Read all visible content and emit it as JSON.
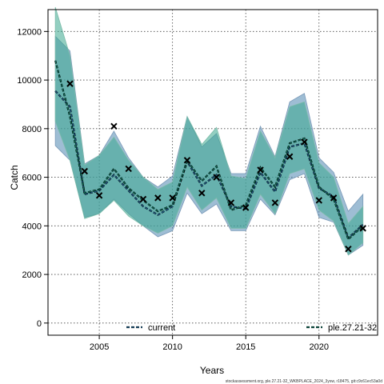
{
  "chart_data": {
    "type": "line",
    "xlabel": "Years",
    "ylabel": "Catch",
    "xlim": [
      2001.5,
      2024
    ],
    "ylim": [
      -500,
      12900
    ],
    "x_ticks": [
      2005,
      2010,
      2015,
      2020
    ],
    "y_ticks": [
      0,
      2000,
      4000,
      6000,
      8000,
      10000,
      12000
    ],
    "grid": true,
    "legend_position": "bottom",
    "colors": {
      "current": "#4f86b0",
      "ple.27.21-32": "#3aa88e",
      "observed": "#000000"
    },
    "series": [
      {
        "name": "current",
        "x": [
          2002,
          2003,
          2004,
          2005,
          2006,
          2007,
          2008,
          2009,
          2010,
          2011,
          2012,
          2013,
          2014,
          2015,
          2016,
          2017,
          2018,
          2019,
          2020,
          2021,
          2022,
          2023
        ],
        "values": [
          9550,
          8900,
          5300,
          5450,
          6100,
          5450,
          4800,
          4450,
          4800,
          6650,
          5650,
          6100,
          4800,
          4700,
          6200,
          5400,
          7250,
          7400,
          5550,
          5200,
          3500,
          4050
        ],
        "lower": [
          7300,
          6700,
          4350,
          4500,
          5100,
          4500,
          4000,
          3550,
          3800,
          5350,
          4500,
          4900,
          3800,
          3800,
          5100,
          4450,
          5900,
          6150,
          4350,
          4150,
          2800,
          3200
        ],
        "upper": [
          11800,
          11200,
          6550,
          6900,
          7900,
          6800,
          6000,
          5600,
          6050,
          8500,
          7250,
          7800,
          6150,
          6150,
          8100,
          6850,
          9100,
          9450,
          6800,
          6200,
          4600,
          5300
        ]
      },
      {
        "name": "ple.27.21-32",
        "x": [
          2002,
          2003,
          2004,
          2005,
          2006,
          2007,
          2008,
          2009,
          2010,
          2011,
          2012,
          2013,
          2014,
          2015,
          2016,
          2017,
          2018,
          2019,
          2020,
          2021,
          2022,
          2023
        ],
        "values": [
          10800,
          8500,
          5350,
          5500,
          6350,
          5550,
          5050,
          4600,
          4850,
          6700,
          5850,
          6450,
          4650,
          4850,
          6400,
          5600,
          7400,
          7600,
          5600,
          5100,
          3450,
          4000
        ],
        "lower": [
          8300,
          6700,
          4300,
          4500,
          5050,
          4400,
          4000,
          3700,
          4000,
          5600,
          4650,
          5150,
          3900,
          3900,
          5300,
          4500,
          6150,
          6350,
          4650,
          4200,
          2800,
          3300
        ],
        "upper": [
          13000,
          11000,
          6500,
          6900,
          7650,
          6700,
          6000,
          5500,
          5800,
          8500,
          7350,
          8050,
          6050,
          5950,
          7900,
          6800,
          8900,
          9100,
          6600,
          6000,
          4100,
          4800
        ]
      }
    ],
    "observed": {
      "x": [
        2003,
        2004,
        2005,
        2006,
        2007,
        2008,
        2009,
        2010,
        2011,
        2012,
        2013,
        2014,
        2015,
        2016,
        2017,
        2018,
        2019,
        2020,
        2021,
        2022,
        2023
      ],
      "values": [
        9850,
        6250,
        5250,
        8100,
        6350,
        5100,
        5150,
        5150,
        6700,
        5350,
        6000,
        4950,
        4750,
        6300,
        4950,
        6850,
        7450,
        5050,
        5150,
        3050,
        3900
      ]
    }
  },
  "legend": [
    {
      "label": "current",
      "color": "#1f5f8b"
    },
    {
      "label": "ple.27.21-32",
      "color": "#0e6e5a"
    }
  ],
  "footer": "stockassessment.org, ple.27.21-32_WKBPLACE_2024_3ysw, r18475, git:c9c61ec53a0d"
}
